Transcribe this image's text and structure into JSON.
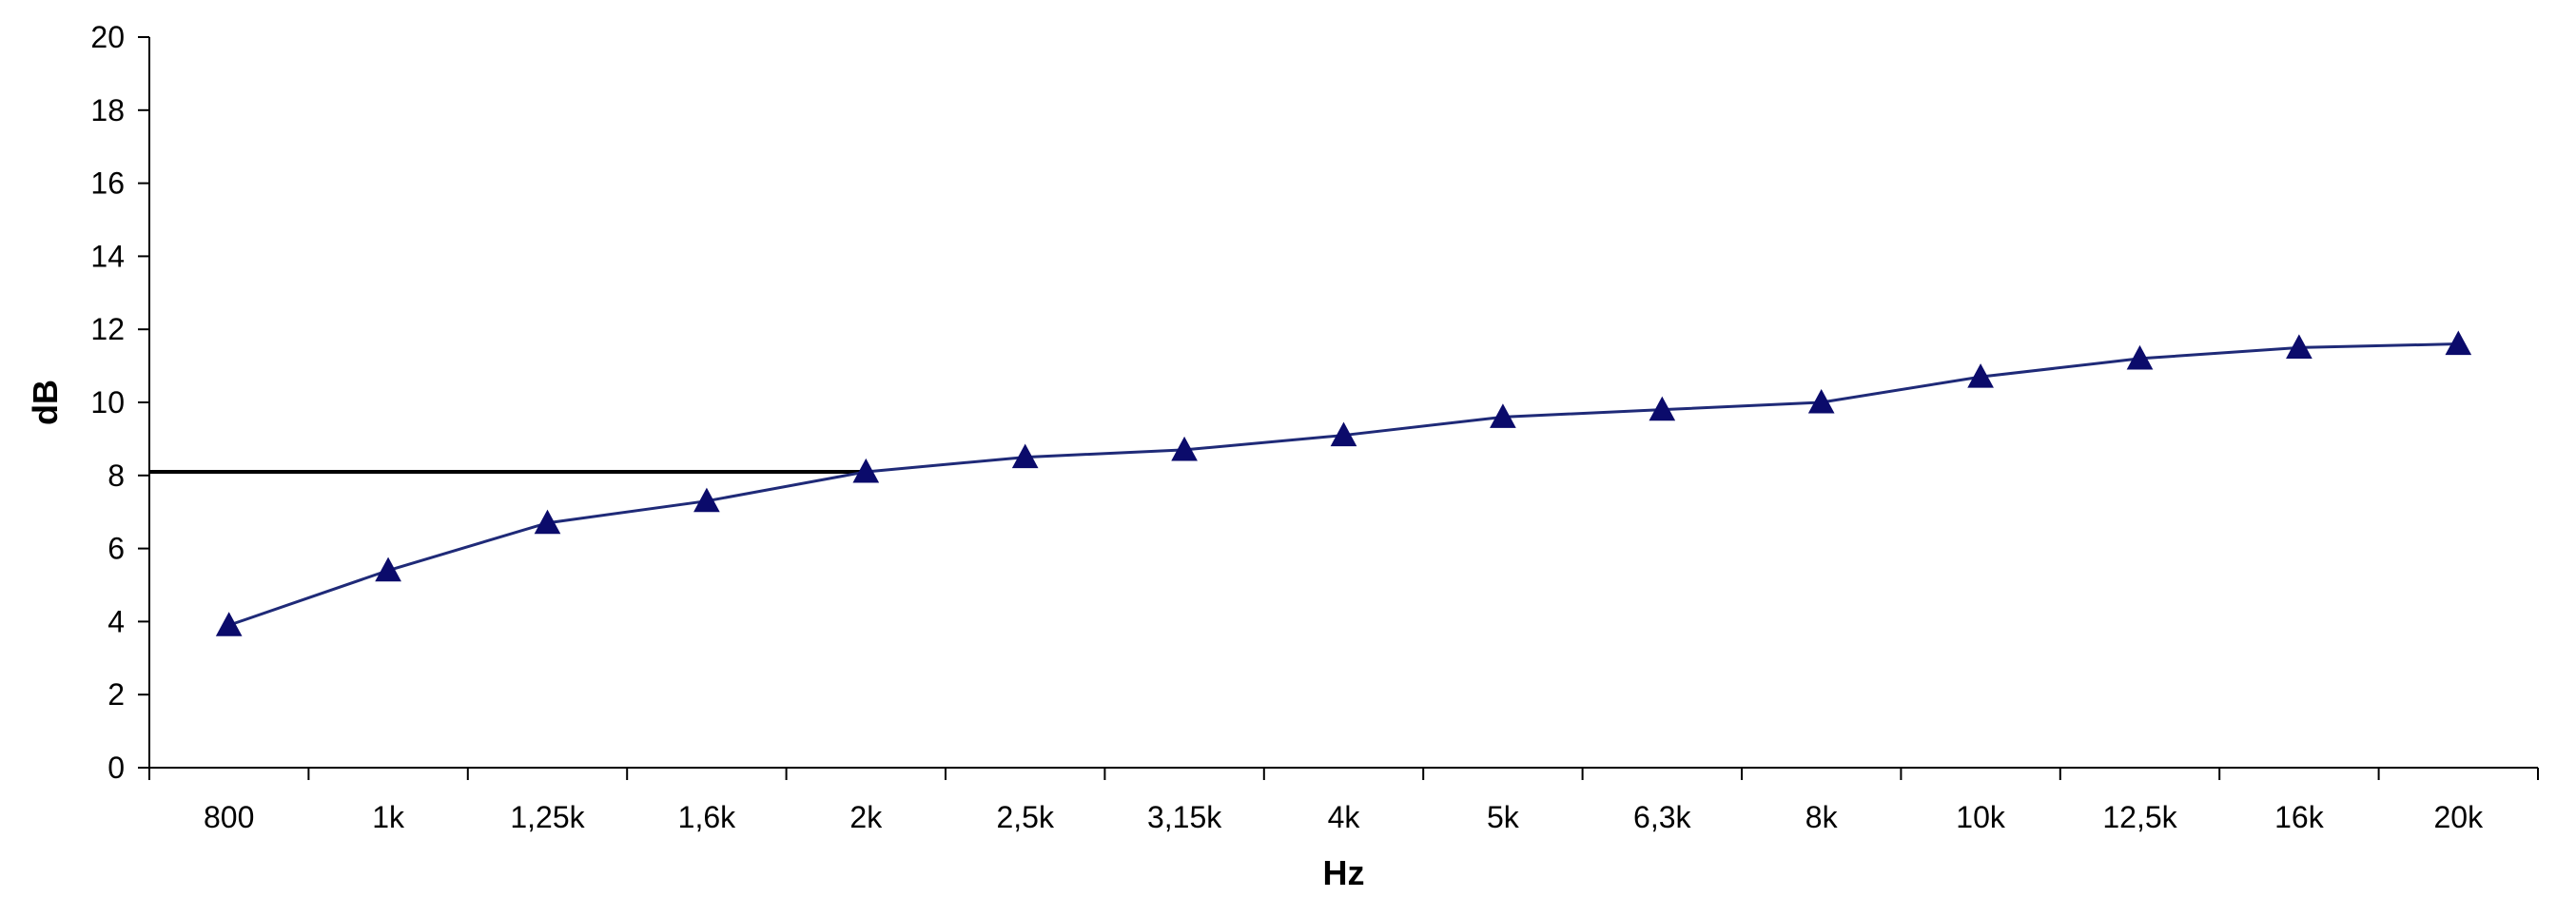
{
  "chart_data": {
    "type": "line",
    "title": "",
    "xlabel": "Hz",
    "ylabel": "dB",
    "categories": [
      "800",
      "1k",
      "1,25k",
      "1,6k",
      "2k",
      "2,5k",
      "3,15k",
      "4k",
      "5k",
      "6,3k",
      "8k",
      "10k",
      "12,5k",
      "16k",
      "20k"
    ],
    "series": [
      {
        "values": [
          3.9,
          5.4,
          6.7,
          7.3,
          8.1,
          8.5,
          8.7,
          9.1,
          9.6,
          9.8,
          10.0,
          10.7,
          11.2,
          11.5,
          11.6
        ],
        "color": "#1f2a78",
        "marker": "triangle",
        "marker_color": "#0b0b6b"
      }
    ],
    "reference_line": {
      "y": 8.1,
      "from_category": 0,
      "to_category": "2k",
      "color": "#000000"
    },
    "ylim": [
      0,
      20
    ],
    "yticks": [
      "0",
      "2",
      "4",
      "6",
      "8",
      "10",
      "12",
      "14",
      "16",
      "18",
      "20"
    ],
    "grid": false,
    "legend": "none"
  }
}
